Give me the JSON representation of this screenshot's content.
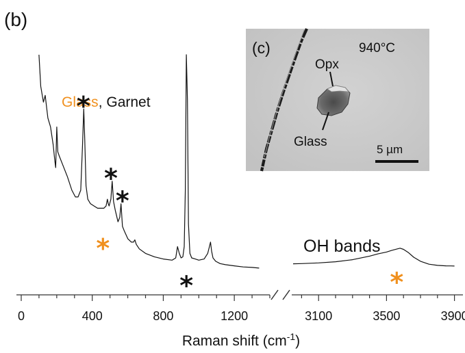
{
  "chart_data": {
    "type": "line",
    "panel_label": "(b)",
    "xlabel": "Raman shift (cm",
    "xlabel_superscript": "-1",
    "xlabel_close": ")",
    "x_segments": [
      {
        "xlim": [
          0,
          1400
        ],
        "ticks": [
          0,
          400,
          800,
          1200
        ],
        "minor_step": 100
      },
      {
        "xlim": [
          2950,
          3950
        ],
        "ticks": [
          3100,
          3500,
          3900
        ],
        "minor_step": 100
      }
    ],
    "legend": {
      "glass": "Glass",
      "separator": ", ",
      "garnet": "Garnet"
    },
    "colors": {
      "glass": "#f0901e",
      "garnet": "#111111",
      "line": "#111111",
      "scale_bar": "#111111"
    },
    "series": [
      {
        "segment": 0,
        "x": [
          100,
          110,
          125,
          135,
          150,
          165,
          180,
          188,
          194,
          200,
          206,
          215,
          235,
          260,
          285,
          305,
          320,
          335,
          345,
          352,
          358,
          365,
          375,
          390,
          410,
          430,
          450,
          465,
          478,
          485,
          490,
          495,
          505,
          512,
          520,
          530,
          545,
          555,
          562,
          570,
          580,
          600,
          620,
          632,
          640,
          648,
          665,
          700,
          750,
          800,
          850,
          870,
          880,
          890,
          900,
          910,
          918,
          924,
          930,
          936,
          942,
          950,
          960,
          980,
          1000,
          1030,
          1050,
          1060,
          1066,
          1072,
          1080,
          1095,
          1120,
          1150,
          1200,
          1250,
          1300,
          1340
        ],
        "y": [
          100,
          86,
          79,
          82,
          72,
          68,
          60,
          54,
          50,
          68,
          57,
          55,
          51,
          46,
          40,
          37,
          37,
          40,
          60,
          76,
          62,
          42,
          36,
          34,
          33,
          32,
          32,
          32,
          33,
          36,
          34,
          33,
          36,
          44,
          35,
          31,
          26,
          28,
          34,
          24,
          22,
          18.5,
          17,
          17,
          18,
          16,
          14,
          12,
          10.5,
          9.5,
          9,
          10,
          15,
          12,
          10,
          10.5,
          15,
          40,
          100,
          80,
          25,
          12,
          10,
          9.5,
          9,
          9.5,
          12,
          15,
          17,
          13,
          10,
          8.5,
          7.5,
          7,
          6.5,
          6,
          5.8,
          5.5
        ]
      },
      {
        "segment": 1,
        "x": [
          2950,
          3000,
          3100,
          3200,
          3300,
          3400,
          3450,
          3500,
          3530,
          3560,
          3580,
          3600,
          3630,
          3660,
          3700,
          3750,
          3800,
          3850,
          3880,
          3900
        ],
        "y": [
          7.4,
          7.5,
          7.8,
          8.3,
          9.2,
          10.8,
          11.8,
          12.6,
          13.3,
          13.9,
          14.3,
          13.8,
          12.3,
          10.3,
          8.5,
          7.2,
          6.7,
          6.5,
          6.45,
          6.4
        ]
      }
    ],
    "annotations": [
      {
        "text": "*",
        "color": "garnet",
        "x": 350,
        "y": 80,
        "segment": 0
      },
      {
        "text": "*",
        "color": "garnet",
        "x": 505,
        "y": 48,
        "segment": 0
      },
      {
        "text": "*",
        "color": "garnet",
        "x": 570,
        "y": 38,
        "segment": 0
      },
      {
        "text": "*",
        "color": "glass",
        "x": 460,
        "y": 17,
        "segment": 0
      },
      {
        "text": "*",
        "color": "garnet",
        "x": 930,
        "y": 0.5,
        "segment": 0
      },
      {
        "text": "*",
        "color": "glass",
        "x": 3560,
        "y": 2,
        "segment": 1
      }
    ],
    "oh_label": "OH bands",
    "inset": {
      "label": "(c)",
      "temperature": "940°C",
      "opx": "Opx",
      "glass": "Glass",
      "scale": "5 µm"
    }
  }
}
